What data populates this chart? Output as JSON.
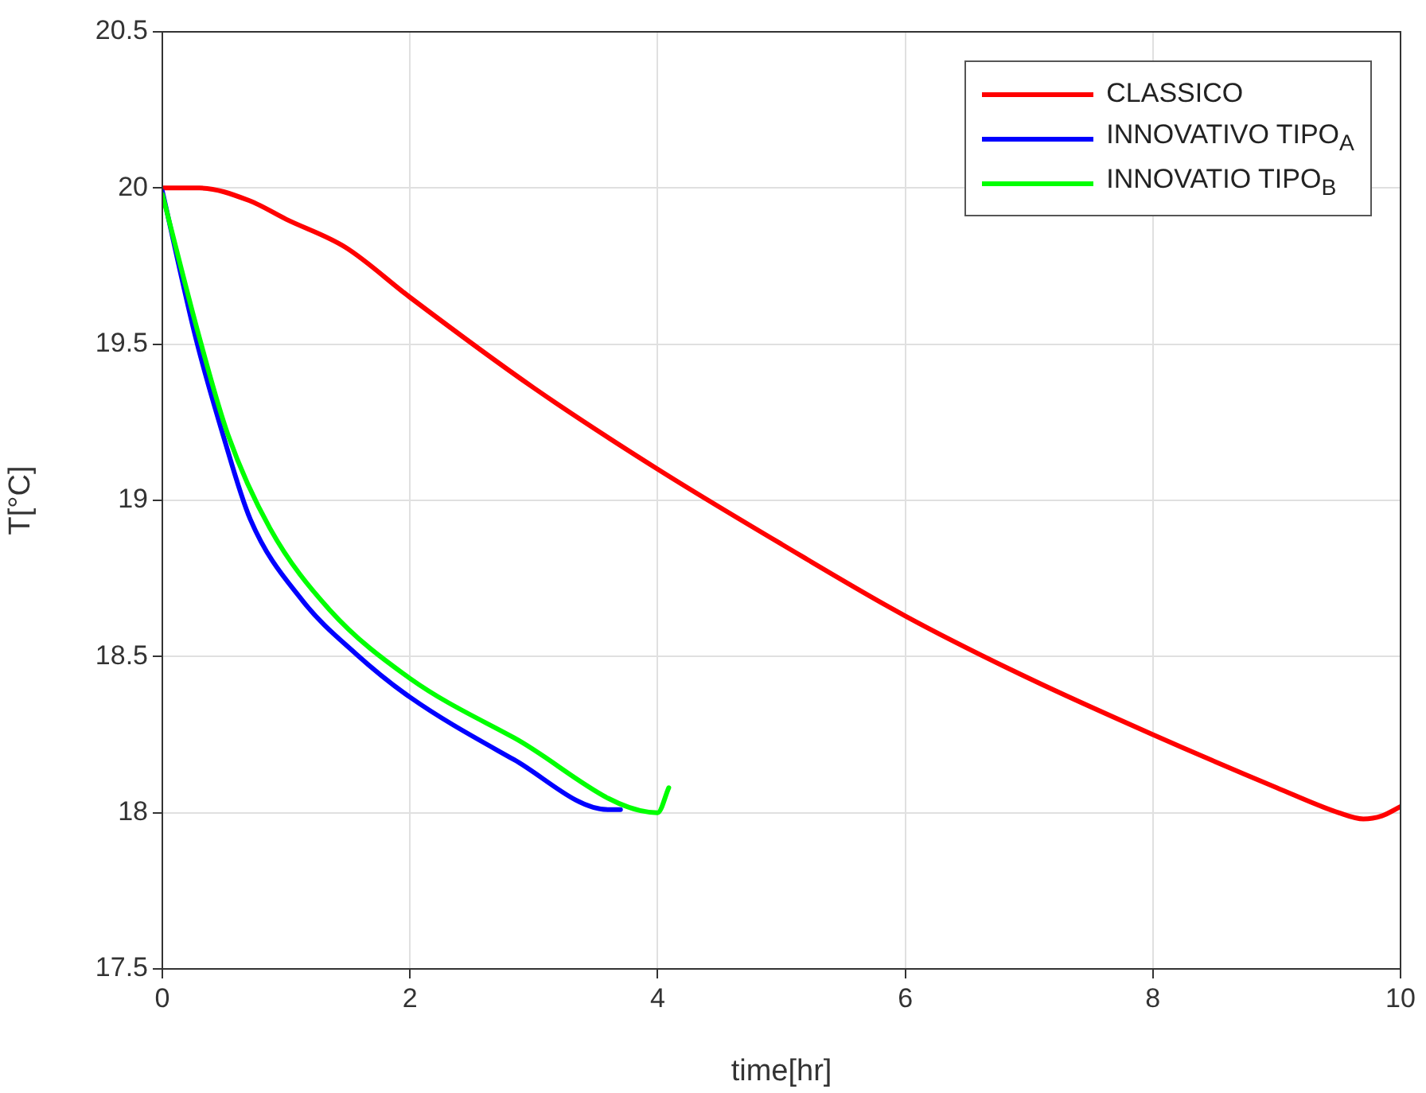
{
  "chart_data": {
    "type": "line",
    "xlabel": "time[hr]",
    "ylabel": "T[°C]",
    "xlim": [
      0,
      10
    ],
    "xticks": [
      0,
      2,
      4,
      6,
      8,
      10
    ],
    "ylim": [
      17.5,
      20.5
    ],
    "yticks": [
      17.5,
      18,
      18.5,
      19,
      19.5,
      20,
      20.5
    ],
    "grid": true,
    "legend": "top right",
    "marker": "none",
    "line_style": "solid",
    "series": [
      {
        "name": "CLASSICO",
        "color": "#ff0000",
        "x": [
          0,
          0.3,
          0.7,
          1.0,
          1.48,
          2.0,
          3.0,
          4.0,
          5.0,
          6.0,
          7.0,
          8.0,
          9.0,
          9.5,
          9.7,
          9.85,
          10.0
        ],
        "values": [
          20.0,
          20.0,
          19.96,
          19.9,
          19.81,
          19.65,
          19.36,
          19.1,
          18.86,
          18.63,
          18.43,
          18.25,
          18.08,
          18.0,
          17.98,
          17.99,
          18.02
        ]
      },
      {
        "name": "INNOVATIVO TIPO$_{A}$",
        "color": "#0000ff",
        "x": [
          0,
          0.27,
          0.49,
          0.71,
          1.13,
          1.56,
          2.0,
          2.84,
          3.6,
          3.7
        ],
        "values": [
          19.99,
          19.52,
          19.21,
          18.94,
          18.68,
          18.51,
          18.37,
          18.17,
          18.01,
          18.01
        ]
      },
      {
        "name": "INNOVATIO TIPO$_{B}$",
        "color": "#00ff00",
        "x": [
          0,
          0.3,
          0.53,
          0.87,
          1.35,
          2.0,
          2.84,
          4.0,
          4.09
        ],
        "values": [
          19.98,
          19.52,
          19.21,
          18.91,
          18.65,
          18.43,
          18.24,
          18.0,
          18.08
        ]
      }
    ]
  }
}
